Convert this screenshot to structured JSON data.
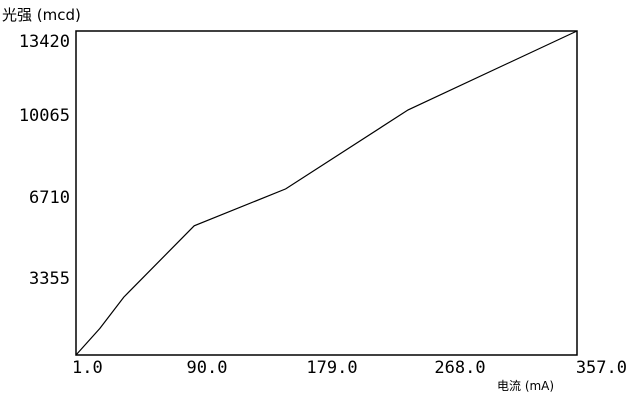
{
  "chart_data": {
    "type": "line",
    "ylabel": "光强 (mcd)",
    "xlabel": "电流 (mA)",
    "xlim": [
      1.0,
      357.0
    ],
    "ylim": [
      0,
      13420
    ],
    "x_ticks": [
      "1.0",
      "90.0",
      "179.0",
      "268.0",
      "357.0"
    ],
    "y_ticks": [
      "3355",
      "6710",
      "10065",
      "13420"
    ],
    "series": [
      {
        "x": [
          1.0,
          18.0,
          35.0,
          85.0,
          150.0,
          237.0,
          357.0
        ],
        "y": [
          0,
          1100,
          2400,
          5350,
          6880,
          10150,
          13420
        ]
      }
    ],
    "grid": false,
    "legend": "none"
  }
}
